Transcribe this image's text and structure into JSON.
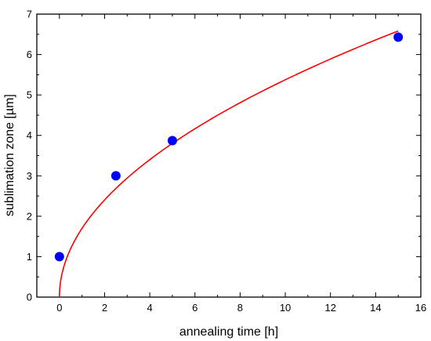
{
  "chart_data": {
    "type": "scatter",
    "xlabel": "annealing time [h]",
    "ylabel": "sublimation zone [µm]",
    "xlim": [
      -1,
      16
    ],
    "ylim": [
      0,
      7
    ],
    "x_ticks": [
      0,
      2,
      4,
      6,
      8,
      10,
      12,
      14,
      16
    ],
    "y_ticks": [
      0,
      1,
      2,
      3,
      4,
      5,
      6,
      7
    ],
    "grid": false,
    "series": [
      {
        "kind": "points",
        "color": "#0000ff",
        "points": [
          {
            "x": 0,
            "y": 1.0
          },
          {
            "x": 2.5,
            "y": 3.0
          },
          {
            "x": 5,
            "y": 3.87
          },
          {
            "x": 15,
            "y": 6.43
          }
        ]
      },
      {
        "kind": "fit-curve",
        "color": "#ff0000",
        "function": "y = a * sqrt(x)",
        "a": 1.7,
        "x_range": [
          0,
          15
        ]
      }
    ]
  }
}
